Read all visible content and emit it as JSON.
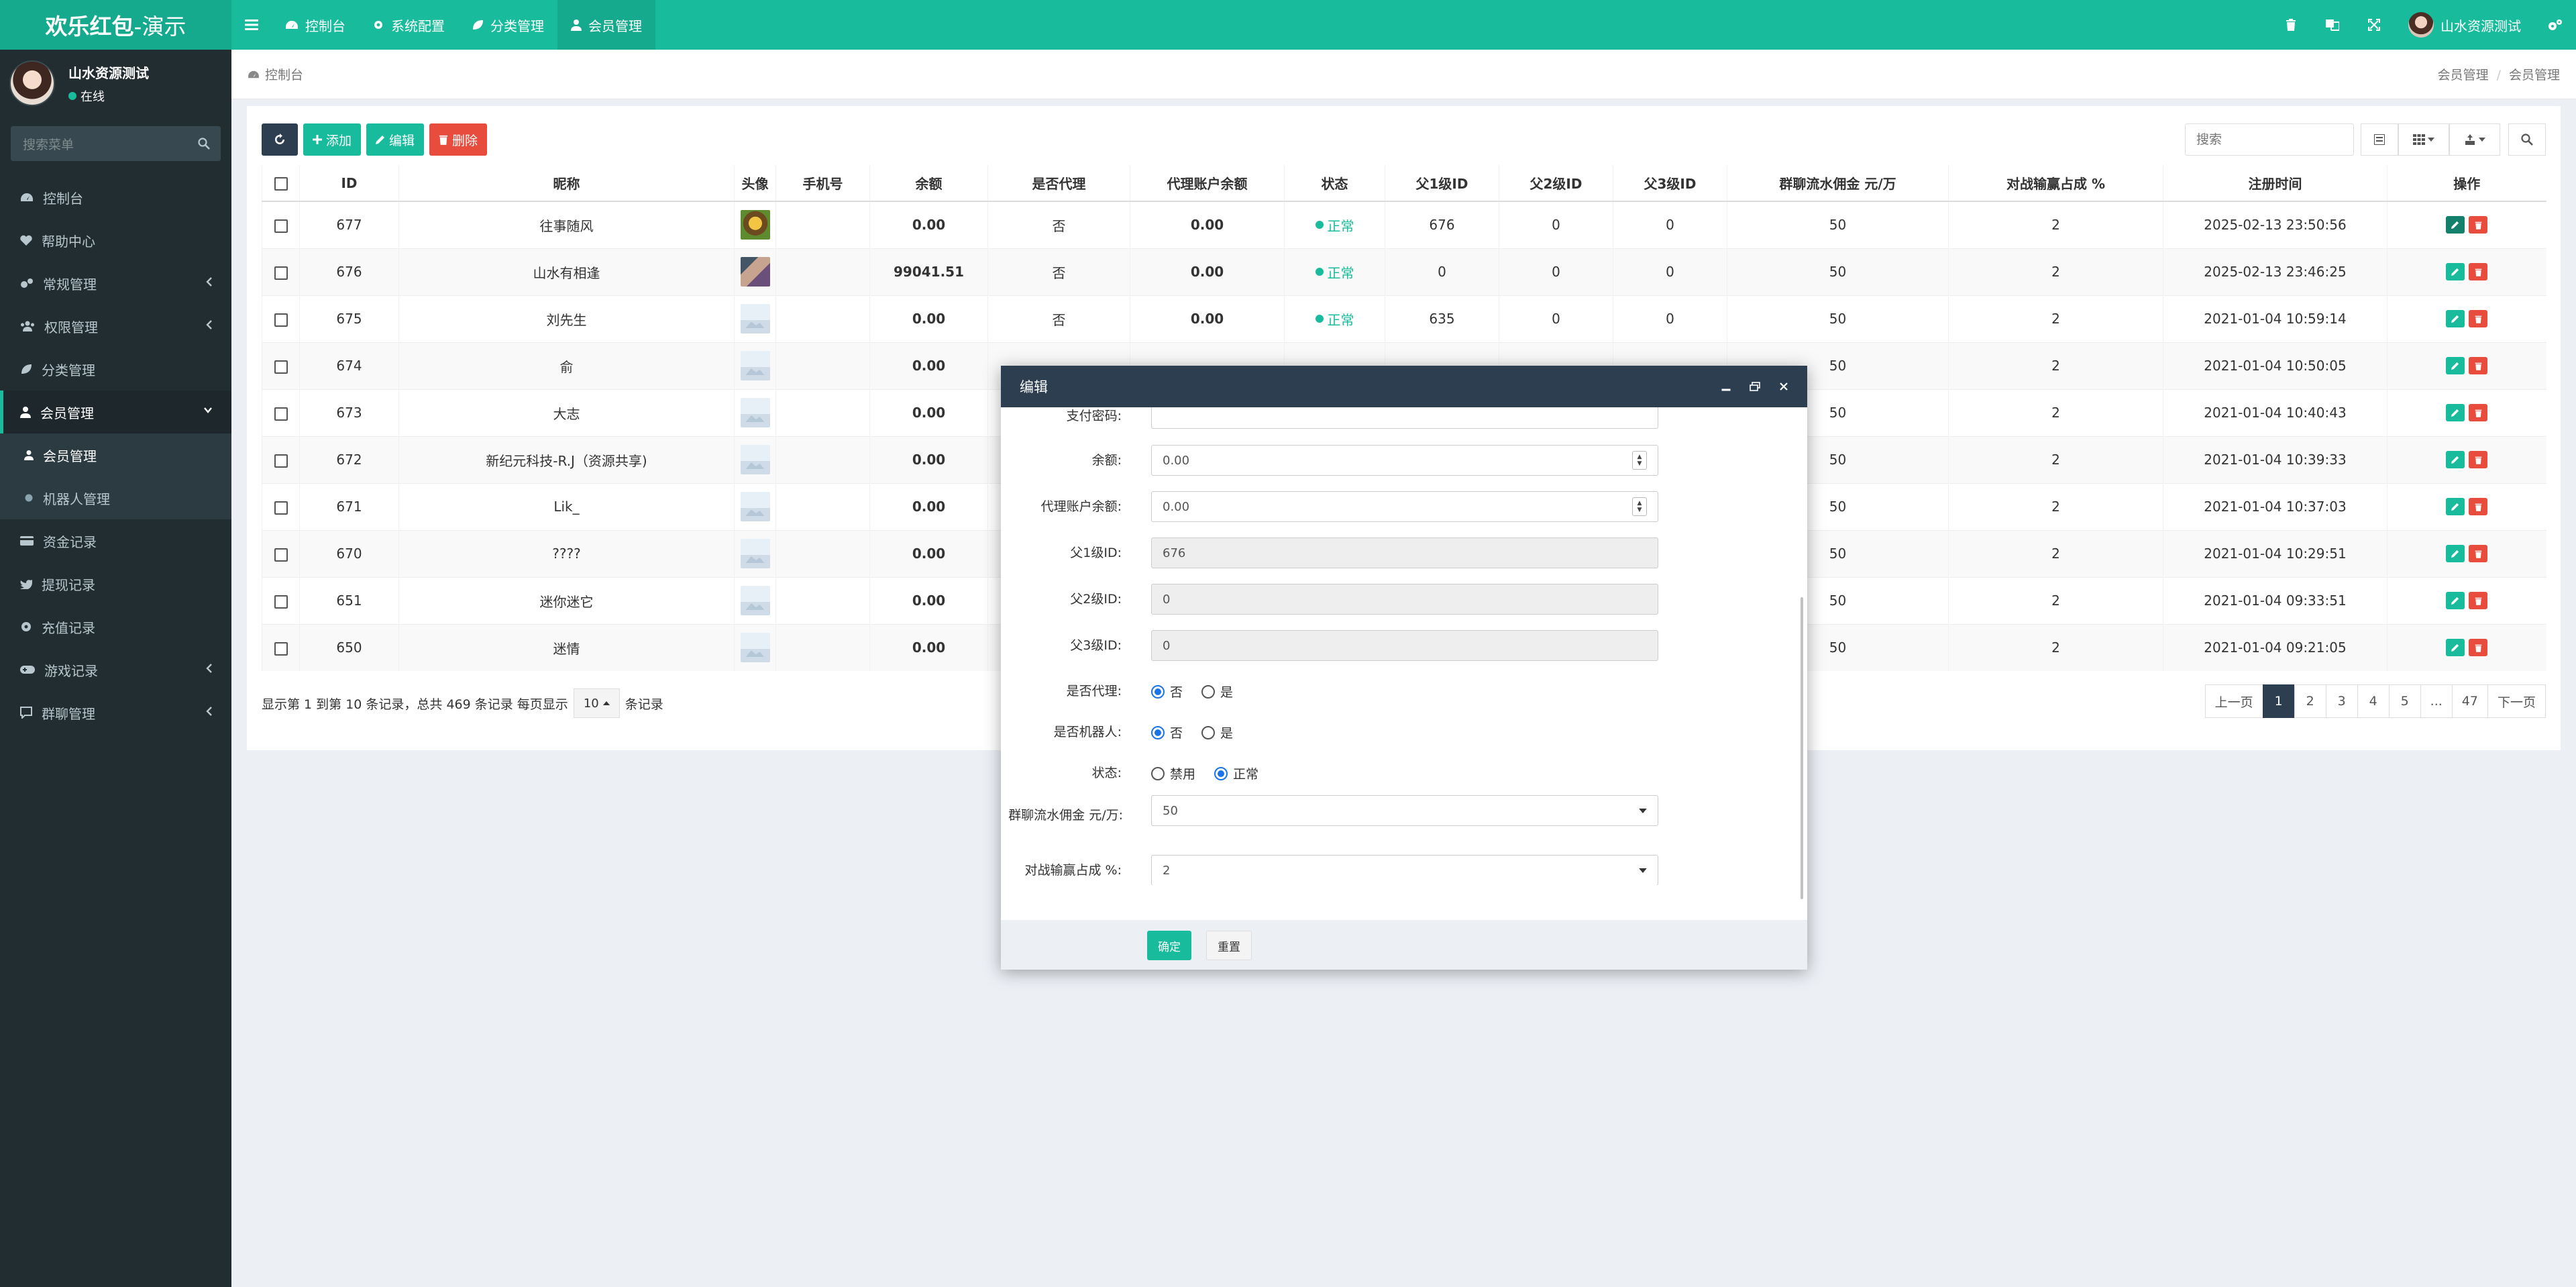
{
  "app": {
    "name_bold": "欢乐红包",
    "name_light": "-演示"
  },
  "topnav": [
    {
      "label": "控制台",
      "icon": "dashboard-icon"
    },
    {
      "label": "系统配置",
      "icon": "gear-icon"
    },
    {
      "label": "分类管理",
      "icon": "leaf-icon"
    },
    {
      "label": "会员管理",
      "icon": "user-icon"
    }
  ],
  "header_user": {
    "name": "山水资源测试"
  },
  "sidebar": {
    "user": {
      "name": "山水资源测试",
      "status": "在线"
    },
    "search_placeholder": "搜索菜单",
    "items": [
      {
        "label": "控制台",
        "icon": "dashboard-icon"
      },
      {
        "label": "帮助中心",
        "icon": "heart-icon"
      },
      {
        "label": "常规管理",
        "icon": "cogs-icon"
      },
      {
        "label": "权限管理",
        "icon": "group-icon"
      },
      {
        "label": "分类管理",
        "icon": "leaf-icon"
      },
      {
        "label": "会员管理",
        "icon": "user-icon"
      },
      {
        "label": "会员管理",
        "icon": "user-icon"
      },
      {
        "label": "机器人管理",
        "icon": "circle-icon"
      },
      {
        "label": "资金记录",
        "icon": "card-icon"
      },
      {
        "label": "提现记录",
        "icon": "twitter-icon"
      },
      {
        "label": "充值记录",
        "icon": "gear-icon"
      },
      {
        "label": "游戏记录",
        "icon": "gamepad-icon"
      },
      {
        "label": "群聊管理",
        "icon": "comment-icon"
      }
    ]
  },
  "breadcrumb": {
    "home": "控制台",
    "trail": [
      "会员管理",
      "会员管理"
    ]
  },
  "toolbar": {
    "add": "添加",
    "edit": "编辑",
    "delete": "删除"
  },
  "table_search_placeholder": "搜索",
  "table": {
    "headers": [
      "ID",
      "昵称",
      "头像",
      "手机号",
      "余额",
      "是否代理",
      "代理账户余额",
      "状态",
      "父1级ID",
      "父2级ID",
      "父3级ID",
      "群聊流水佣金 元/万",
      "对战输赢占成 %",
      "注册时间",
      "操作"
    ],
    "rows": [
      {
        "id": "677",
        "nick": "往事随风",
        "avatar": "img1",
        "phone": "",
        "balance": "0.00",
        "agent": "否",
        "agent_bal": "0.00",
        "status": "正常",
        "p1": "676",
        "p2": "0",
        "p3": "0",
        "comm": "50",
        "pct": "2",
        "time": "2025-02-13 23:50:56"
      },
      {
        "id": "676",
        "nick": "山水有相逢",
        "avatar": "img2",
        "phone": "",
        "balance": "99041.51",
        "agent": "否",
        "agent_bal": "0.00",
        "status": "正常",
        "p1": "0",
        "p2": "0",
        "p3": "0",
        "comm": "50",
        "pct": "2",
        "time": "2025-02-13 23:46:25"
      },
      {
        "id": "675",
        "nick": "刘先生",
        "avatar": "ph",
        "phone": "",
        "balance": "0.00",
        "agent": "否",
        "agent_bal": "0.00",
        "status": "正常",
        "p1": "635",
        "p2": "0",
        "p3": "0",
        "comm": "50",
        "pct": "2",
        "time": "2021-01-04 10:59:14"
      },
      {
        "id": "674",
        "nick": "俞",
        "avatar": "ph",
        "phone": "",
        "balance": "0.00",
        "agent": "",
        "agent_bal": "",
        "status": "",
        "p1": "",
        "p2": "",
        "p3": "",
        "comm": "50",
        "pct": "2",
        "time": "2021-01-04 10:50:05"
      },
      {
        "id": "673",
        "nick": "大志",
        "avatar": "ph",
        "phone": "",
        "balance": "0.00",
        "agent": "",
        "agent_bal": "",
        "status": "",
        "p1": "",
        "p2": "",
        "p3": "",
        "comm": "50",
        "pct": "2",
        "time": "2021-01-04 10:40:43"
      },
      {
        "id": "672",
        "nick": "新纪元科技-R.J（资源共享)",
        "avatar": "ph",
        "phone": "",
        "balance": "0.00",
        "agent": "",
        "agent_bal": "",
        "status": "",
        "p1": "",
        "p2": "",
        "p3": "",
        "comm": "50",
        "pct": "2",
        "time": "2021-01-04 10:39:33"
      },
      {
        "id": "671",
        "nick": "Lik_",
        "avatar": "ph",
        "phone": "",
        "balance": "0.00",
        "agent": "",
        "agent_bal": "",
        "status": "",
        "p1": "",
        "p2": "",
        "p3": "",
        "comm": "50",
        "pct": "2",
        "time": "2021-01-04 10:37:03"
      },
      {
        "id": "670",
        "nick": "????",
        "avatar": "ph",
        "phone": "",
        "balance": "0.00",
        "agent": "",
        "agent_bal": "",
        "status": "",
        "p1": "",
        "p2": "",
        "p3": "",
        "comm": "50",
        "pct": "2",
        "time": "2021-01-04 10:29:51"
      },
      {
        "id": "651",
        "nick": "迷你迷它",
        "avatar": "ph",
        "phone": "",
        "balance": "0.00",
        "agent": "",
        "agent_bal": "",
        "status": "",
        "p1": "",
        "p2": "",
        "p3": "",
        "comm": "50",
        "pct": "2",
        "time": "2021-01-04 09:33:51"
      },
      {
        "id": "650",
        "nick": "迷情",
        "avatar": "ph",
        "phone": "",
        "balance": "0.00",
        "agent": "",
        "agent_bal": "",
        "status": "",
        "p1": "",
        "p2": "",
        "p3": "",
        "comm": "50",
        "pct": "2",
        "time": "2021-01-04 09:21:05"
      }
    ]
  },
  "pager": {
    "info": "显示第 1 到第 10 条记录，总共 469 条记录 每页显示",
    "size": "10",
    "suffix": "条记录",
    "pages": [
      "上一页",
      "1",
      "2",
      "3",
      "4",
      "5",
      "...",
      "47",
      "下一页"
    ],
    "active": "1"
  },
  "modal": {
    "title": "编辑",
    "fields": {
      "pay_password": {
        "label": "支付密码:",
        "value": ""
      },
      "balance": {
        "label": "余额:",
        "value": "0.00"
      },
      "agent_balance": {
        "label": "代理账户余额:",
        "value": "0.00"
      },
      "p1": {
        "label": "父1级ID:",
        "value": "676"
      },
      "p2": {
        "label": "父2级ID:",
        "value": "0"
      },
      "p3": {
        "label": "父3级ID:",
        "value": "0"
      },
      "is_agent": {
        "label": "是否代理:",
        "options": [
          "否",
          "是"
        ],
        "selected": "否"
      },
      "is_robot": {
        "label": "是否机器人:",
        "options": [
          "否",
          "是"
        ],
        "selected": "否"
      },
      "status": {
        "label": "状态:",
        "options": [
          "禁用",
          "正常"
        ],
        "selected": "正常"
      },
      "commission": {
        "label": "群聊流水佣金 元/万:",
        "value": "50"
      },
      "pct": {
        "label": "对战输赢占成 %:",
        "value": "2"
      }
    },
    "ok": "确定",
    "reset": "重置"
  },
  "colors": {
    "brand": "#18bc9c",
    "sidebar": "#222d32",
    "modal_head": "#2c3e50",
    "danger": "#e74c3c"
  }
}
